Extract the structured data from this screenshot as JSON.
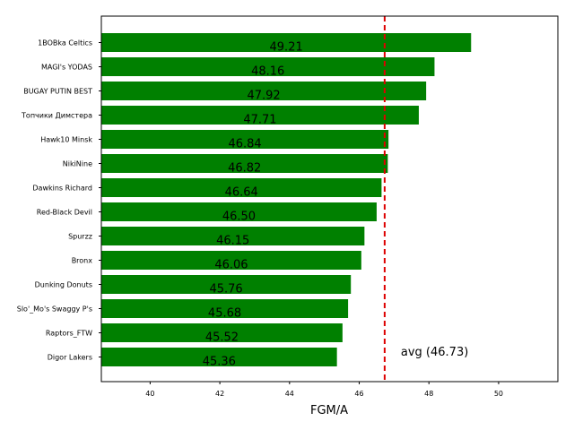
{
  "chart_data": {
    "type": "bar",
    "orientation": "horizontal",
    "categories": [
      "1BOBka Celtics",
      "MAGI's YODAS",
      "BUGAY PUTIN BEST",
      "Топчики Димстера",
      "Hawk10 Minsk",
      "NikiNine",
      "Dawkins Richard",
      "Red-Black Devil",
      "Spurzz",
      "Bronx",
      "Dunking Donuts",
      "Slo'_Mo's Swaggy P's",
      "Raptors_FTW",
      "Digor Lakers"
    ],
    "values": [
      49.21,
      48.16,
      47.92,
      47.71,
      46.84,
      46.82,
      46.64,
      46.5,
      46.15,
      46.06,
      45.76,
      45.68,
      45.52,
      45.36
    ],
    "value_labels": [
      "49.21",
      "48.16",
      "47.92",
      "47.71",
      "46.84",
      "46.82",
      "46.64",
      "46.50",
      "46.15",
      "46.06",
      "45.76",
      "45.68",
      "45.52",
      "45.36"
    ],
    "xlabel": "FGM/A",
    "ylabel": "",
    "xlim": [
      38.6,
      51.7
    ],
    "xticks": [
      40,
      42,
      44,
      46,
      48,
      50
    ],
    "xtick_labels": [
      "40",
      "42",
      "44",
      "46",
      "48",
      "50"
    ],
    "grid": false,
    "bar_color": "#008000",
    "average": {
      "value": 46.73,
      "label": "avg (46.73)",
      "color": "#dd0000",
      "style": "dashed"
    }
  }
}
